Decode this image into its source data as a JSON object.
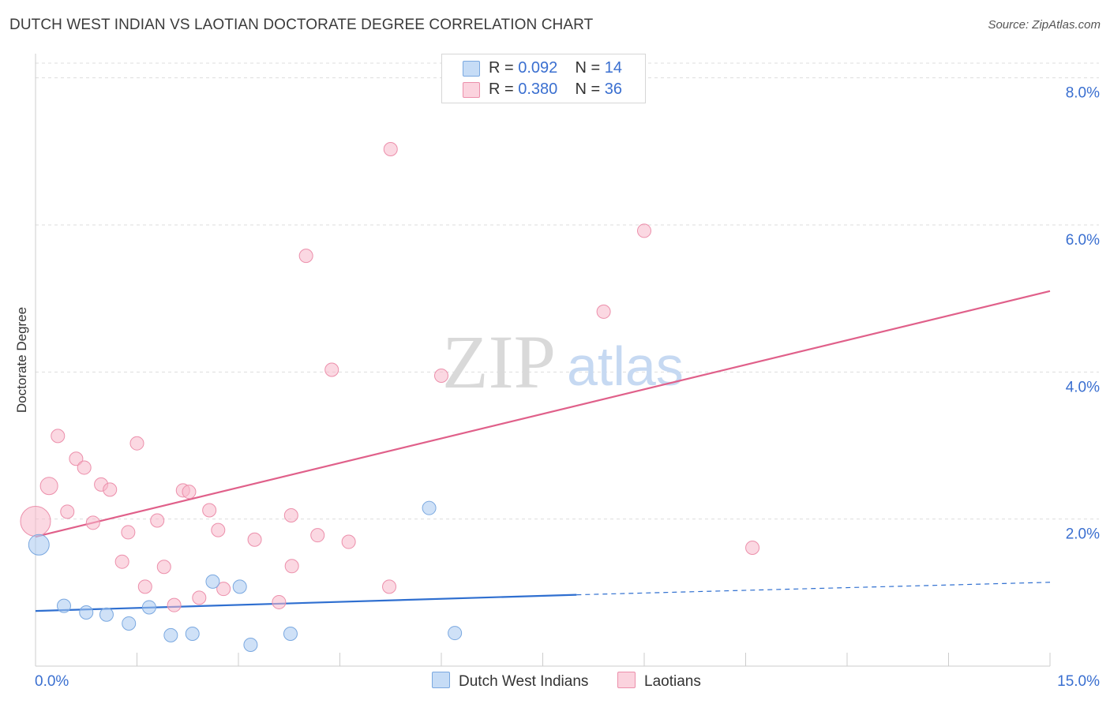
{
  "title": "DUTCH WEST INDIAN VS LAOTIAN DOCTORATE DEGREE CORRELATION CHART",
  "source": "Source: ZipAtlas.com",
  "watermark": {
    "zip": "ZIP",
    "atlas": "atlas"
  },
  "legend_top": {
    "r_label": "R =",
    "n_label": "N =",
    "rows": [
      {
        "r": "0.092",
        "n": "14",
        "color": "#a8c8f0"
      },
      {
        "r": "0.380",
        "n": "36",
        "color": "#f7b8ca"
      }
    ]
  },
  "legend_bottom": {
    "series1": "Dutch West Indians",
    "series2": "Laotians"
  },
  "chart_data": {
    "type": "scatter",
    "title": "DUTCH WEST INDIAN VS LAOTIAN DOCTORATE DEGREE CORRELATION CHART",
    "xlabel": "",
    "ylabel": "Doctorate Degree",
    "xlim": [
      0,
      15
    ],
    "ylim": [
      0,
      8.2
    ],
    "x_tick_labels": [
      "0.0%",
      "15.0%"
    ],
    "y_ticks": [
      2,
      4,
      6,
      8
    ],
    "y_tick_labels": [
      "2.0%",
      "4.0%",
      "6.0%",
      "8.0%"
    ],
    "grid": true,
    "series": [
      {
        "name": "Dutch West Indians",
        "color": "#a8c8f0",
        "stroke": "#7aa8e0",
        "line_color": "#2f6fd0",
        "r": 0.092,
        "n": 14,
        "trend": {
          "x0": 0,
          "y0": 0.75,
          "x1": 8.0,
          "y1": 0.97,
          "dash_to_x": 15,
          "dash_to_y": 1.14
        },
        "points": [
          {
            "x": 0.05,
            "y": 1.65,
            "s": 3
          },
          {
            "x": 0.42,
            "y": 0.82,
            "s": 1
          },
          {
            "x": 0.75,
            "y": 0.73,
            "s": 1
          },
          {
            "x": 1.05,
            "y": 0.7,
            "s": 1
          },
          {
            "x": 1.38,
            "y": 0.58,
            "s": 1
          },
          {
            "x": 1.68,
            "y": 0.8,
            "s": 1
          },
          {
            "x": 2.0,
            "y": 0.42,
            "s": 1
          },
          {
            "x": 2.32,
            "y": 0.44,
            "s": 1
          },
          {
            "x": 2.62,
            "y": 1.15,
            "s": 1
          },
          {
            "x": 3.02,
            "y": 1.08,
            "s": 1
          },
          {
            "x": 3.18,
            "y": 0.29,
            "s": 1
          },
          {
            "x": 3.77,
            "y": 0.44,
            "s": 1
          },
          {
            "x": 5.82,
            "y": 2.15,
            "s": 1
          },
          {
            "x": 6.2,
            "y": 0.45,
            "s": 1
          }
        ]
      },
      {
        "name": "Laotians",
        "color": "#f7b8ca",
        "stroke": "#ec8fab",
        "line_color": "#e0608a",
        "r": 0.38,
        "n": 36,
        "trend": {
          "x0": 0,
          "y0": 1.76,
          "x1": 15,
          "y1": 5.1
        },
        "points": [
          {
            "x": 0.0,
            "y": 1.97,
            "s": 4
          },
          {
            "x": 0.2,
            "y": 2.45,
            "s": 2
          },
          {
            "x": 0.33,
            "y": 3.13,
            "s": 1
          },
          {
            "x": 0.47,
            "y": 2.1,
            "s": 1
          },
          {
            "x": 0.6,
            "y": 2.82,
            "s": 1
          },
          {
            "x": 0.72,
            "y": 2.7,
            "s": 1
          },
          {
            "x": 0.85,
            "y": 1.95,
            "s": 1
          },
          {
            "x": 0.97,
            "y": 2.47,
            "s": 1
          },
          {
            "x": 1.1,
            "y": 2.4,
            "s": 1
          },
          {
            "x": 1.28,
            "y": 1.42,
            "s": 1
          },
          {
            "x": 1.37,
            "y": 1.82,
            "s": 1
          },
          {
            "x": 1.5,
            "y": 3.03,
            "s": 1
          },
          {
            "x": 1.62,
            "y": 1.08,
            "s": 1
          },
          {
            "x": 1.8,
            "y": 1.98,
            "s": 1
          },
          {
            "x": 1.9,
            "y": 1.35,
            "s": 1
          },
          {
            "x": 2.05,
            "y": 0.83,
            "s": 1
          },
          {
            "x": 2.18,
            "y": 2.39,
            "s": 1
          },
          {
            "x": 2.27,
            "y": 2.37,
            "s": 1
          },
          {
            "x": 2.42,
            "y": 0.93,
            "s": 1
          },
          {
            "x": 2.57,
            "y": 2.12,
            "s": 1
          },
          {
            "x": 2.7,
            "y": 1.85,
            "s": 1
          },
          {
            "x": 2.78,
            "y": 1.05,
            "s": 1
          },
          {
            "x": 3.24,
            "y": 1.72,
            "s": 1
          },
          {
            "x": 3.6,
            "y": 0.87,
            "s": 1
          },
          {
            "x": 3.78,
            "y": 2.05,
            "s": 1
          },
          {
            "x": 3.79,
            "y": 1.36,
            "s": 1
          },
          {
            "x": 4.0,
            "y": 5.58,
            "s": 1
          },
          {
            "x": 4.17,
            "y": 1.78,
            "s": 1
          },
          {
            "x": 4.38,
            "y": 4.03,
            "s": 1
          },
          {
            "x": 4.63,
            "y": 1.69,
            "s": 1
          },
          {
            "x": 5.23,
            "y": 1.08,
            "s": 1
          },
          {
            "x": 5.25,
            "y": 7.03,
            "s": 1
          },
          {
            "x": 6.0,
            "y": 3.95,
            "s": 1
          },
          {
            "x": 8.4,
            "y": 4.82,
            "s": 1
          },
          {
            "x": 9.0,
            "y": 5.92,
            "s": 1
          },
          {
            "x": 10.6,
            "y": 1.61,
            "s": 1
          }
        ]
      }
    ]
  }
}
